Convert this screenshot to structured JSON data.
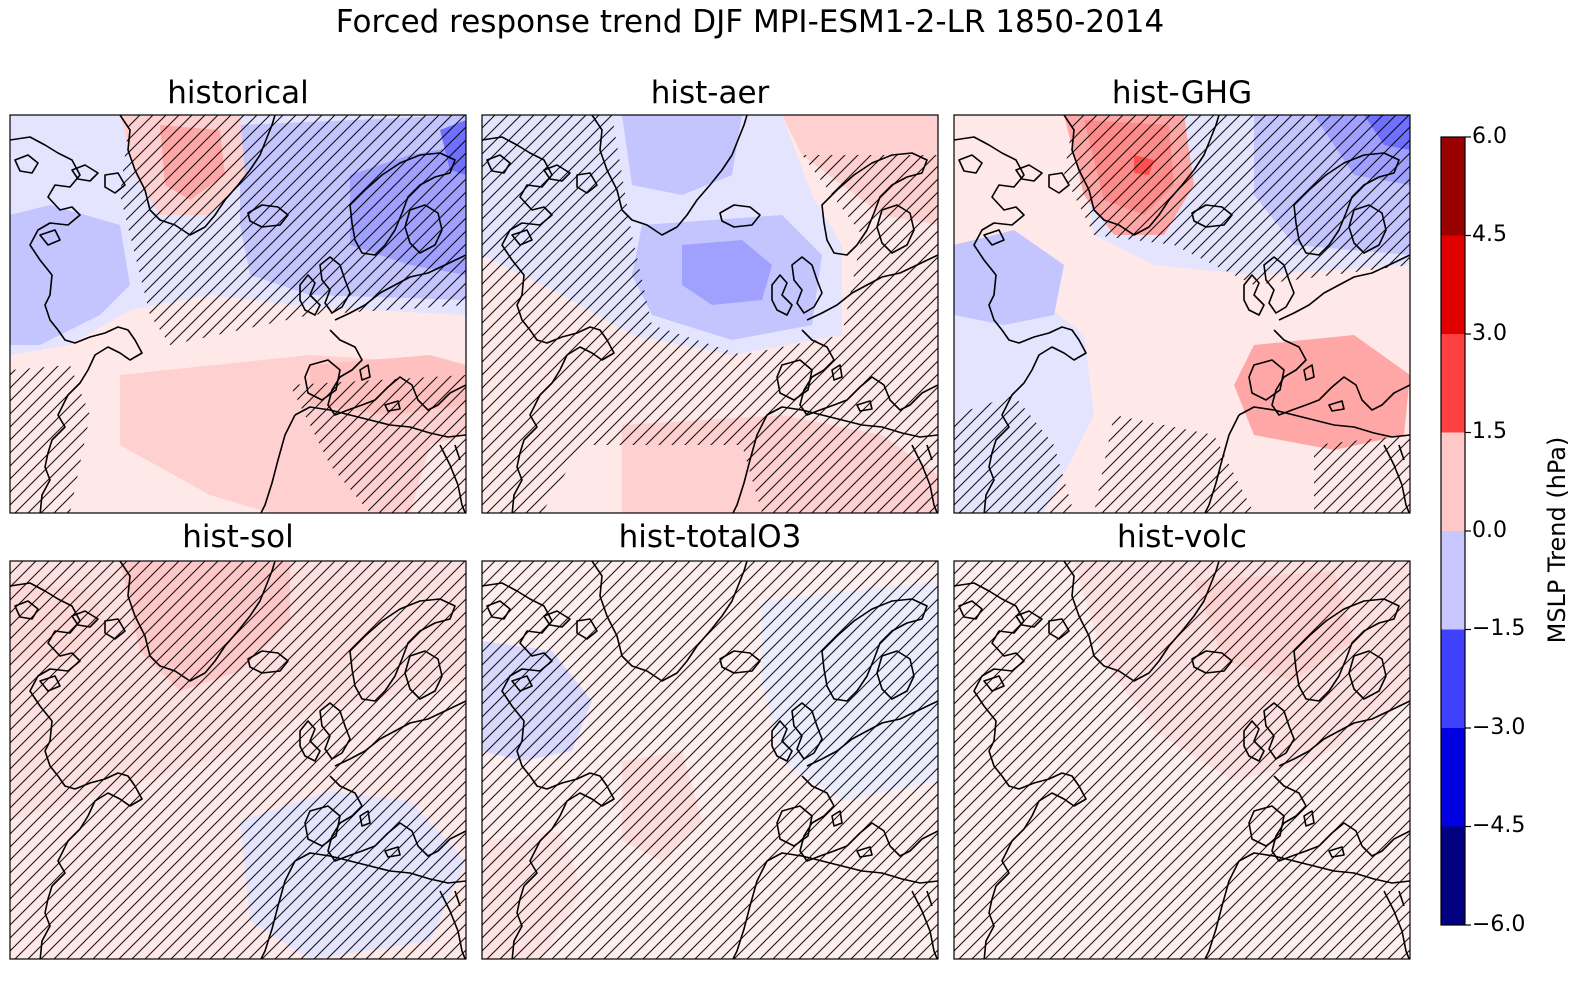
{
  "title": "Forced response trend DJF MPI-ESM1-2-LR 1850-2014",
  "panels": [
    {
      "id": "historical",
      "title": "historical"
    },
    {
      "id": "hist-aer",
      "title": "hist-aer"
    },
    {
      "id": "hist-GHG",
      "title": "hist-GHG"
    },
    {
      "id": "hist-sol",
      "title": "hist-sol"
    },
    {
      "id": "hist-totalO3",
      "title": "hist-totalO3"
    },
    {
      "id": "hist-volc",
      "title": "hist-volc"
    }
  ],
  "colorbar": {
    "label": "MSLP Trend (hPa)",
    "ticks": [
      "6.0",
      "4.5",
      "3.0",
      "1.5",
      "0.0",
      "−1.5",
      "−3.0",
      "−4.5",
      "−6.0"
    ],
    "colors": [
      "#990000",
      "#e00000",
      "#ff4040",
      "#ffc8c8",
      "#c8c8ff",
      "#4040ff",
      "#0000e0",
      "#000080"
    ]
  },
  "level_colors": {
    "r3": "#ff7a7a",
    "r2": "#ffa7a7",
    "r1": "#ffd0d0",
    "r0": "#ffe8e8",
    "b0": "#e4e4ff",
    "b1": "#c4c4ff",
    "b2": "#a0a0ff",
    "b3": "#7070ff",
    "b4": "#3030f0"
  }
}
